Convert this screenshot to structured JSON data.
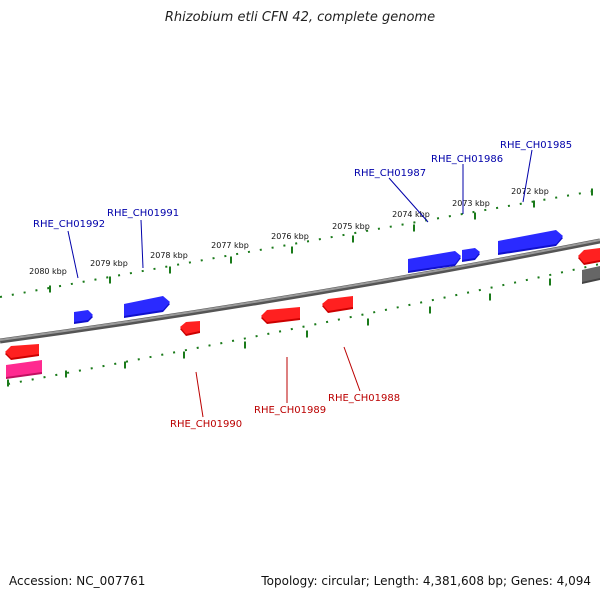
{
  "title": "Rhizobium etli CFN 42, complete genome",
  "footer": {
    "accession": "Accession: NC_007761",
    "summary": "Topology: circular; Length: 4,381,608 bp; Genes: 4,094"
  },
  "colors": {
    "forward_gene": "#0000ee",
    "reverse_gene": "#ee0000",
    "other_feature": "#e8157a",
    "backbone": "#7a7a7a",
    "tick": "#1a7a1a",
    "forward_label": "#0000aa",
    "reverse_label": "#bb0000"
  },
  "ruler_labels": [
    "2080 kbp",
    "2079 kbp",
    "2078 kbp",
    "2077 kbp",
    "2076 kbp",
    "2075 kbp",
    "2074 kbp",
    "2073 kbp",
    "2072 kbp"
  ],
  "forward_gene_labels": [
    "RHE_CH01992",
    "RHE_CH01991",
    "RHE_CH01987",
    "RHE_CH01986",
    "RHE_CH01985"
  ],
  "reverse_gene_labels": [
    "RHE_CH01990",
    "RHE_CH01989",
    "RHE_CH01988"
  ]
}
